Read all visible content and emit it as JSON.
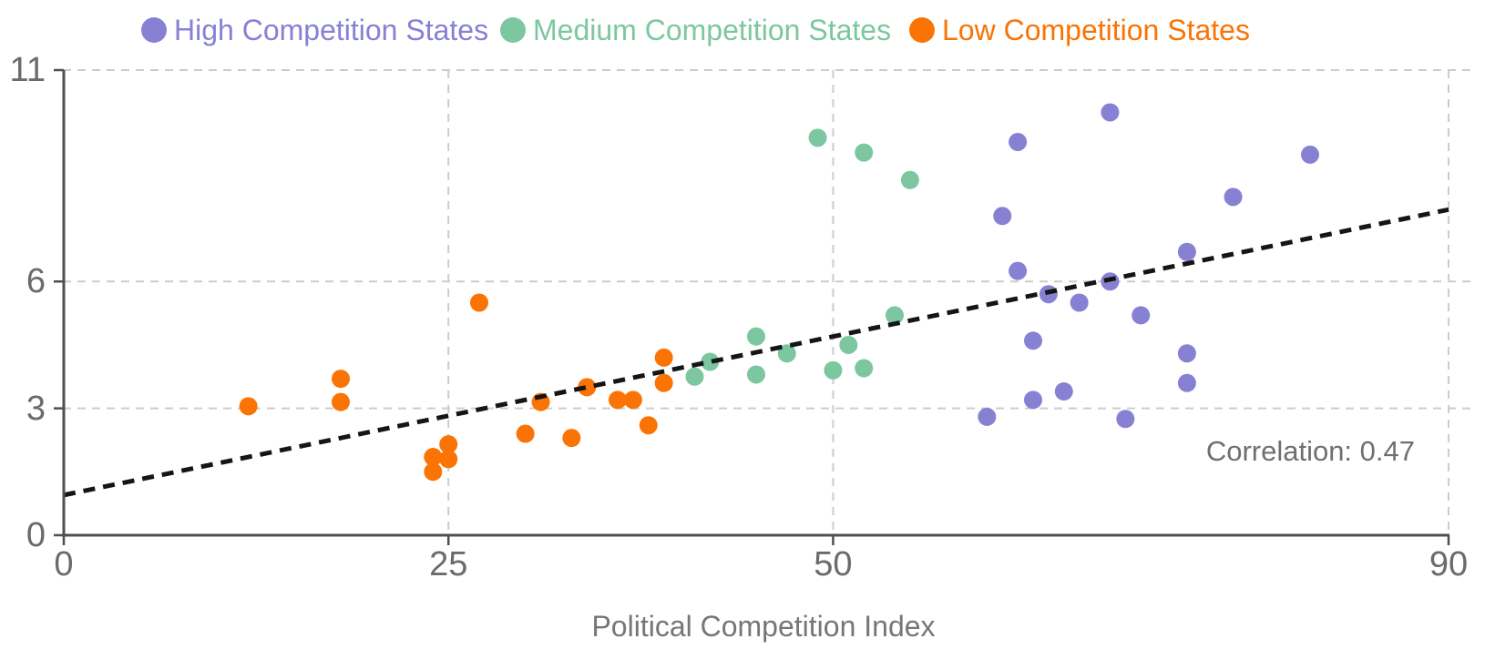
{
  "chart_data": {
    "type": "scatter",
    "title": "",
    "xlabel": "Political Competition Index",
    "ylabel": "",
    "xlim": [
      0,
      90
    ],
    "ylim": [
      0,
      11
    ],
    "xticks": [
      0,
      25,
      50,
      90
    ],
    "yticks": [
      0,
      3,
      6,
      11
    ],
    "grid": true,
    "grid_style": "dashed",
    "legend_position": "top",
    "annotation": "Correlation: 0.47",
    "correlation": 0.47,
    "series": [
      {
        "name": "High Competition States",
        "color": "#8781d4",
        "points": [
          [
            60,
            2.8
          ],
          [
            61,
            7.55
          ],
          [
            62,
            9.3
          ],
          [
            62,
            6.25
          ],
          [
            63,
            4.6
          ],
          [
            63,
            3.2
          ],
          [
            64,
            5.7
          ],
          [
            65,
            3.4
          ],
          [
            66,
            5.5
          ],
          [
            68,
            10.0
          ],
          [
            68,
            6.0
          ],
          [
            69,
            2.75
          ],
          [
            70,
            5.2
          ],
          [
            73,
            6.7
          ],
          [
            73,
            4.3
          ],
          [
            73,
            3.6
          ],
          [
            76,
            8.0
          ],
          [
            81,
            9.0
          ]
        ]
      },
      {
        "name": "Medium Competition States",
        "color": "#7cc7a0",
        "points": [
          [
            41,
            3.75
          ],
          [
            42,
            4.1
          ],
          [
            45,
            4.7
          ],
          [
            45,
            3.8
          ],
          [
            47,
            4.3
          ],
          [
            49,
            9.4
          ],
          [
            50,
            3.9
          ],
          [
            51,
            4.5
          ],
          [
            52,
            9.05
          ],
          [
            52,
            3.95
          ],
          [
            54,
            5.2
          ],
          [
            55,
            8.4
          ]
        ]
      },
      {
        "name": "Low Competition States",
        "color": "#fa7405",
        "points": [
          [
            12,
            3.05
          ],
          [
            18,
            3.7
          ],
          [
            18,
            3.15
          ],
          [
            24,
            1.85
          ],
          [
            24,
            1.5
          ],
          [
            25,
            2.15
          ],
          [
            25,
            1.8
          ],
          [
            27,
            5.5
          ],
          [
            30,
            2.4
          ],
          [
            31,
            3.15
          ],
          [
            33,
            2.3
          ],
          [
            34,
            3.5
          ],
          [
            36,
            3.2
          ],
          [
            37,
            3.2
          ],
          [
            38,
            2.6
          ],
          [
            39,
            4.2
          ],
          [
            39,
            3.6
          ]
        ]
      }
    ],
    "trend_line": {
      "style": "dashed",
      "color": "#151515",
      "from": [
        0,
        0.95
      ],
      "to": [
        90,
        7.7
      ]
    }
  },
  "styles": {
    "grid_color": "#cccccc",
    "axis_color": "#4f4f4f",
    "tick_label_color": "#6b6b6b",
    "xlabel_color": "#767676",
    "annotation_color": "#6f6f6f",
    "background": "#ffffff"
  }
}
